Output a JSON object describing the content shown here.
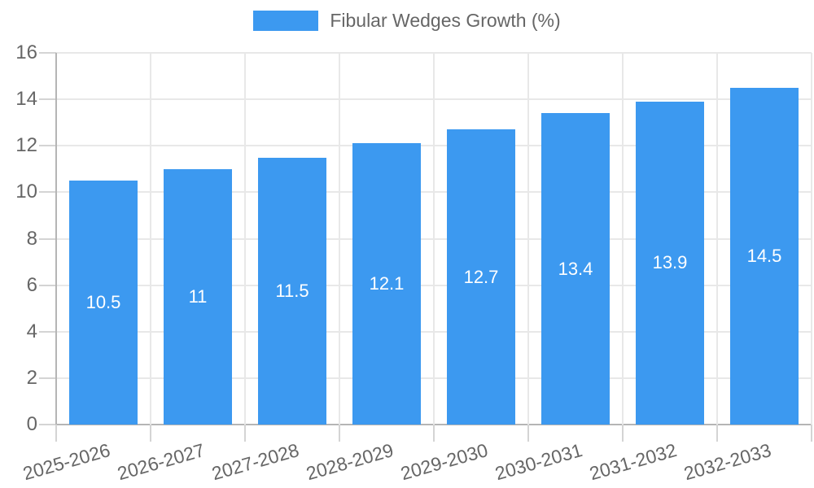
{
  "chart_data": {
    "type": "bar",
    "title": "Fibular Wedges Growth (%)",
    "categories": [
      "2025-2026",
      "2026-2027",
      "2027-2028",
      "2028-2029",
      "2029-2030",
      "2030-2031",
      "2031-2032",
      "2032-2033"
    ],
    "values": [
      10.5,
      11,
      11.5,
      12.1,
      12.7,
      13.4,
      13.9,
      14.5
    ],
    "value_labels": [
      "10.5",
      "11",
      "11.5",
      "12.1",
      "12.7",
      "13.4",
      "13.9",
      "14.5"
    ],
    "xlabel": "",
    "ylabel": "",
    "ylim": [
      0,
      16
    ],
    "yticks": [
      0,
      2,
      4,
      6,
      8,
      10,
      12,
      14,
      16
    ],
    "grid": true,
    "legend_position": "top",
    "colors": {
      "bar": "#3C99F0",
      "bar_label_text": "#ffffff",
      "axis_text": "#666666",
      "gridline": "#e8e8e8",
      "tick_mark": "#d4d4d4",
      "axis_line": "#b5b5b5"
    },
    "x_label_rotation_deg": -16
  }
}
